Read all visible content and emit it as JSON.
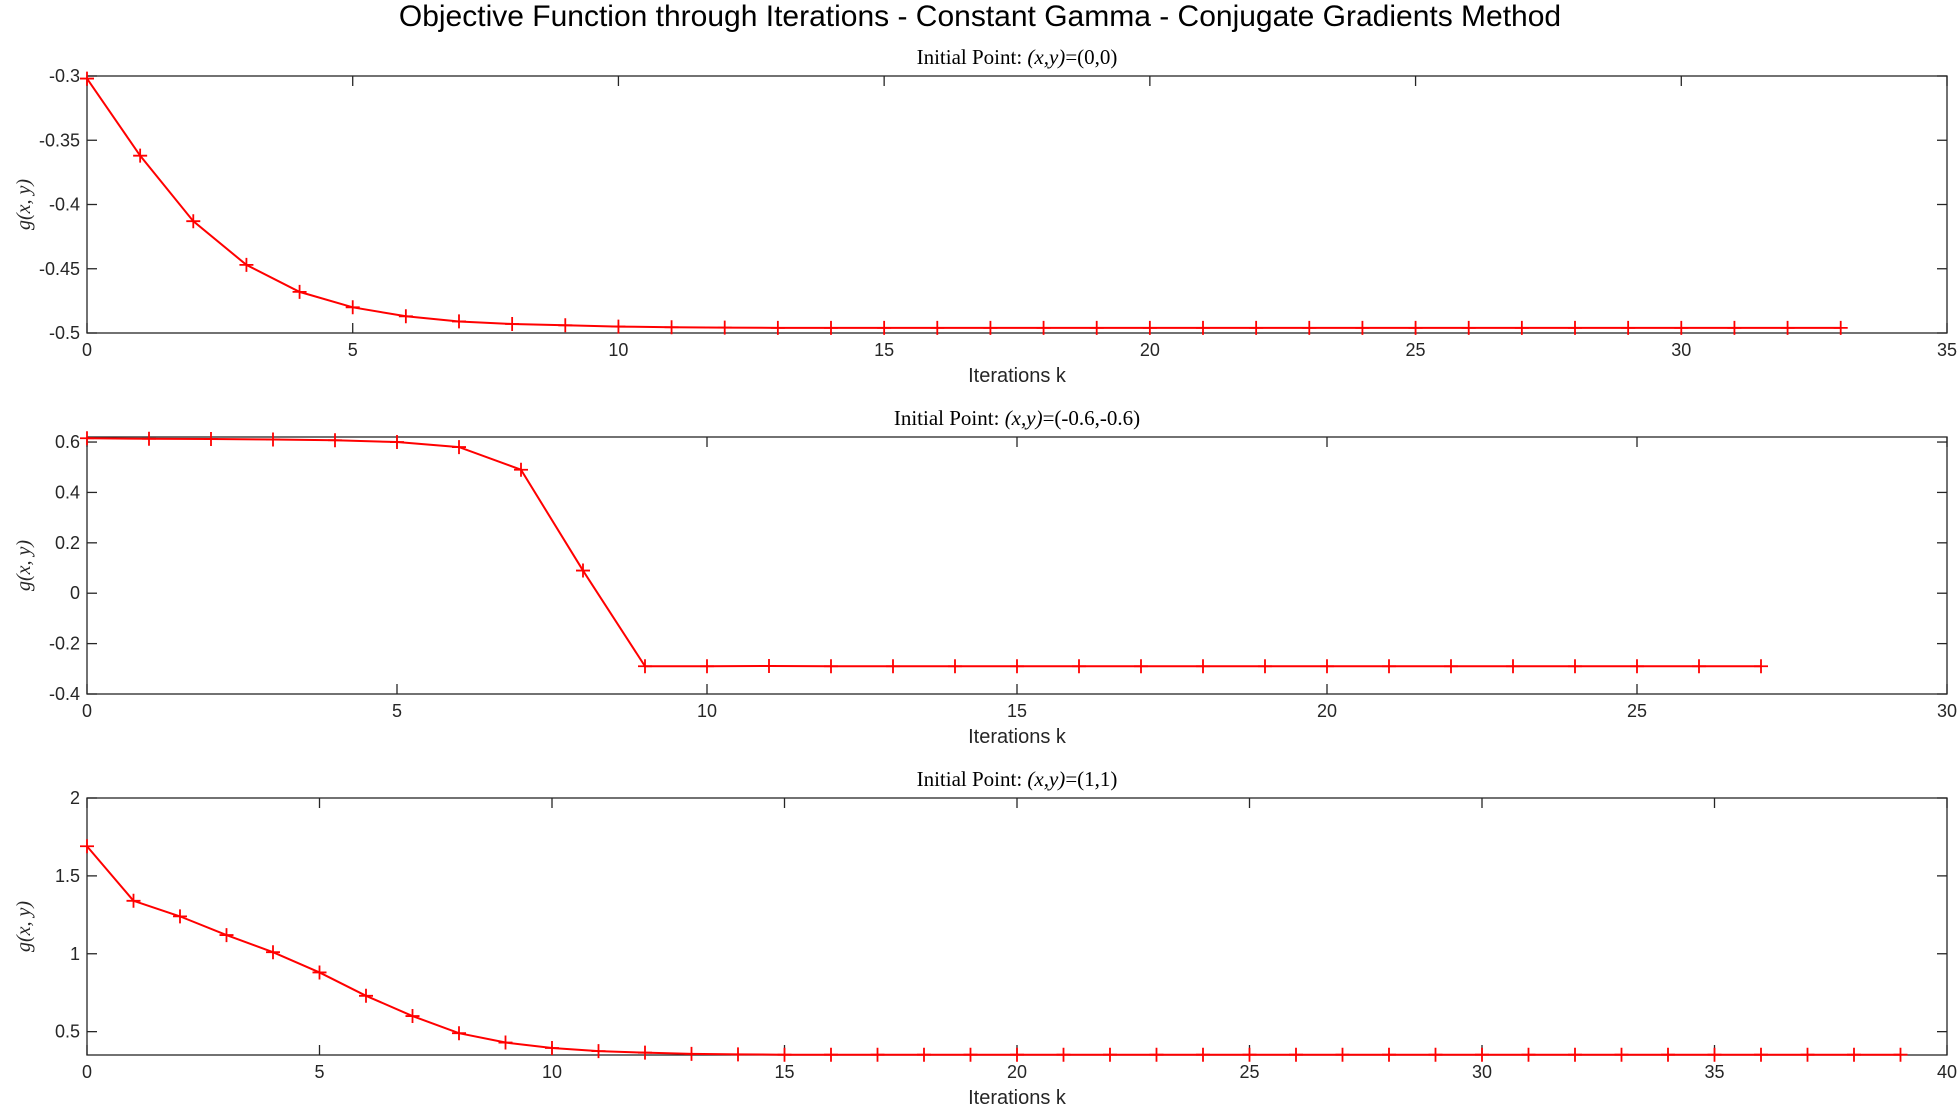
{
  "title": "Objective Function through Iterations - Constant Gamma - Conjugate Gradients Method",
  "chart_data": [
    {
      "type": "line",
      "title_prefix": "Initial Point: ",
      "title_math": "(x,y)",
      "title_value": "=(0,0)",
      "xlabel": "Iterations k",
      "ylabel_func": "g",
      "ylabel_args": "(x, y)",
      "xlim": [
        0,
        35
      ],
      "ylim": [
        -0.5,
        -0.3
      ],
      "xticks": [
        0,
        5,
        10,
        15,
        20,
        25,
        30,
        35
      ],
      "yticks": [
        -0.5,
        -0.45,
        -0.4,
        -0.35,
        -0.3
      ],
      "ytick_labels": [
        "-0.5",
        "-0.45",
        "-0.4",
        "-0.35",
        "-0.3"
      ],
      "color": "#ff0000",
      "marker": "+",
      "x": [
        0,
        1,
        2,
        3,
        4,
        5,
        6,
        7,
        8,
        9,
        10,
        11,
        12,
        13,
        14,
        15,
        16,
        17,
        18,
        19,
        20,
        21,
        22,
        23,
        24,
        25,
        26,
        27,
        28,
        29,
        30,
        31,
        32,
        33
      ],
      "values": [
        -0.302,
        -0.362,
        -0.413,
        -0.447,
        -0.468,
        -0.48,
        -0.487,
        -0.491,
        -0.493,
        -0.494,
        -0.495,
        -0.4955,
        -0.4958,
        -0.496,
        -0.496,
        -0.496,
        -0.496,
        -0.496,
        -0.496,
        -0.496,
        -0.496,
        -0.496,
        -0.496,
        -0.496,
        -0.496,
        -0.496,
        -0.496,
        -0.496,
        -0.496,
        -0.496,
        -0.496,
        -0.496,
        -0.496,
        -0.496
      ]
    },
    {
      "type": "line",
      "title_prefix": "Initial Point: ",
      "title_math": "(x,y)",
      "title_value": "=(-0.6,-0.6)",
      "xlabel": "Iterations k",
      "ylabel_func": "g",
      "ylabel_args": "(x, y)",
      "xlim": [
        0,
        30
      ],
      "ylim": [
        -0.4,
        0.62
      ],
      "xticks": [
        0,
        5,
        10,
        15,
        20,
        25,
        30
      ],
      "yticks": [
        -0.4,
        -0.2,
        0,
        0.2,
        0.4,
        0.6
      ],
      "ytick_labels": [
        "-0.4",
        "-0.2",
        "0",
        "0.2",
        "0.4",
        "0.6"
      ],
      "color": "#ff0000",
      "marker": "+",
      "x": [
        0,
        1,
        2,
        3,
        4,
        5,
        6,
        7,
        8,
        9,
        10,
        11,
        12,
        13,
        14,
        15,
        16,
        17,
        18,
        19,
        20,
        21,
        22,
        23,
        24,
        25,
        26,
        27
      ],
      "values": [
        0.615,
        0.613,
        0.612,
        0.61,
        0.607,
        0.6,
        0.58,
        0.49,
        0.09,
        -0.29,
        -0.29,
        -0.289,
        -0.29,
        -0.29,
        -0.29,
        -0.29,
        -0.29,
        -0.29,
        -0.29,
        -0.29,
        -0.29,
        -0.29,
        -0.29,
        -0.29,
        -0.29,
        -0.29,
        -0.29,
        -0.29
      ]
    },
    {
      "type": "line",
      "title_prefix": "Initial Point: ",
      "title_math": "(x,y)",
      "title_value": "=(1,1)",
      "xlabel": "Iterations k",
      "ylabel_func": "g",
      "ylabel_args": "(x, y)",
      "xlim": [
        0,
        40
      ],
      "ylim": [
        0.35,
        2
      ],
      "xticks": [
        0,
        5,
        10,
        15,
        20,
        25,
        30,
        35,
        40
      ],
      "yticks": [
        0.5,
        1,
        1.5,
        2
      ],
      "ytick_labels": [
        "0.5",
        "1",
        "1.5",
        "2"
      ],
      "color": "#ff0000",
      "marker": "+",
      "x": [
        0,
        1,
        2,
        3,
        4,
        5,
        6,
        7,
        8,
        9,
        10,
        11,
        12,
        13,
        14,
        15,
        16,
        17,
        18,
        19,
        20,
        21,
        22,
        23,
        24,
        25,
        26,
        27,
        28,
        29,
        30,
        31,
        32,
        33,
        34,
        35,
        36,
        37,
        38,
        39
      ],
      "values": [
        1.69,
        1.34,
        1.24,
        1.12,
        1.01,
        0.88,
        0.73,
        0.6,
        0.49,
        0.43,
        0.395,
        0.375,
        0.365,
        0.357,
        0.354,
        0.352,
        0.352,
        0.352,
        0.352,
        0.352,
        0.352,
        0.352,
        0.352,
        0.352,
        0.352,
        0.352,
        0.352,
        0.352,
        0.352,
        0.352,
        0.352,
        0.352,
        0.352,
        0.352,
        0.352,
        0.352,
        0.352,
        0.352,
        0.352,
        0.352
      ]
    }
  ]
}
